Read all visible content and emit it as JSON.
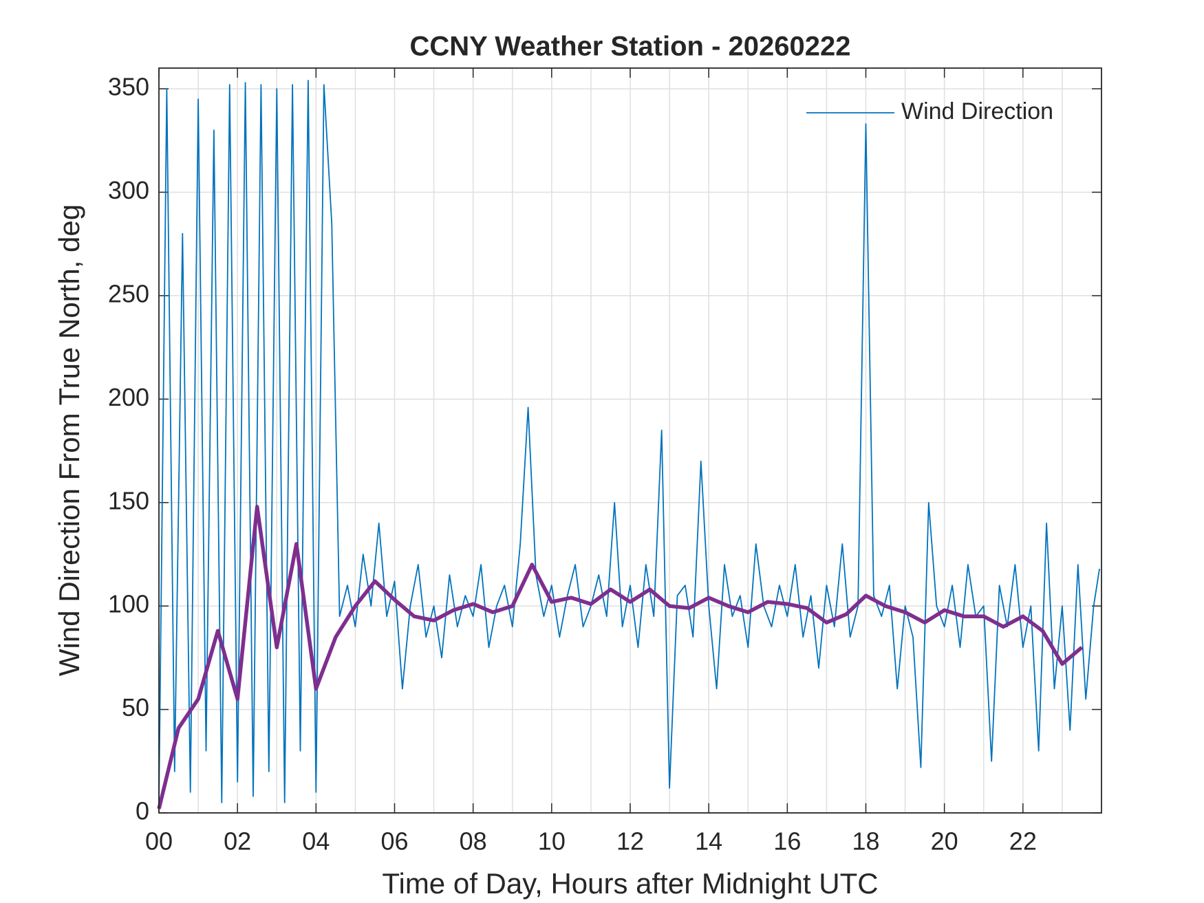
{
  "chart_data": {
    "type": "line",
    "title": "CCNY Weather Station - 20260222",
    "xlabel": "Time of Day, Hours after Midnight UTC",
    "ylabel": "Wind Direction From True North, deg",
    "xlim": [
      0,
      24
    ],
    "ylim": [
      0,
      360
    ],
    "xticks": [
      {
        "value": 0,
        "label": "00"
      },
      {
        "value": 2,
        "label": "02"
      },
      {
        "value": 4,
        "label": "04"
      },
      {
        "value": 6,
        "label": "06"
      },
      {
        "value": 8,
        "label": "08"
      },
      {
        "value": 10,
        "label": "10"
      },
      {
        "value": 12,
        "label": "12"
      },
      {
        "value": 14,
        "label": "14"
      },
      {
        "value": 16,
        "label": "16"
      },
      {
        "value": 18,
        "label": "18"
      },
      {
        "value": 20,
        "label": "20"
      },
      {
        "value": 22,
        "label": "22"
      }
    ],
    "xminorticks": [
      1,
      3,
      5,
      7,
      9,
      11,
      13,
      15,
      17,
      19,
      21,
      23
    ],
    "yticks": [
      0,
      50,
      100,
      150,
      200,
      250,
      300,
      350
    ],
    "grid": true,
    "legend": "upper right",
    "series": [
      {
        "name": "Wind Direction",
        "color": "#0072BD",
        "x": [
          0,
          0.2,
          0.4,
          0.6,
          0.8,
          1,
          1.2,
          1.4,
          1.6,
          1.8,
          2,
          2.2,
          2.4,
          2.6,
          2.8,
          3,
          3.2,
          3.4,
          3.6,
          3.8,
          4,
          4.2,
          4.4,
          4.6,
          4.8,
          5,
          5.2,
          5.4,
          5.6,
          5.8,
          6,
          6.2,
          6.4,
          6.6,
          6.8,
          7,
          7.2,
          7.4,
          7.6,
          7.8,
          8,
          8.2,
          8.4,
          8.6,
          8.8,
          9,
          9.2,
          9.4,
          9.6,
          9.8,
          10,
          10.2,
          10.4,
          10.6,
          10.8,
          11,
          11.2,
          11.4,
          11.6,
          11.8,
          12,
          12.2,
          12.4,
          12.6,
          12.8,
          13,
          13.2,
          13.4,
          13.6,
          13.8,
          14,
          14.2,
          14.4,
          14.6,
          14.8,
          15,
          15.2,
          15.4,
          15.6,
          15.8,
          16,
          16.2,
          16.4,
          16.6,
          16.8,
          17,
          17.2,
          17.4,
          17.6,
          17.8,
          18,
          18.2,
          18.4,
          18.6,
          18.8,
          19,
          19.2,
          19.4,
          19.6,
          19.8,
          20,
          20.2,
          20.4,
          20.6,
          20.8,
          21,
          21.2,
          21.4,
          21.6,
          21.8,
          22,
          22.2,
          22.4,
          22.6,
          22.8,
          23,
          23.2,
          23.4,
          23.6,
          23.8,
          23.95
        ],
        "values": [
          5,
          350,
          20,
          280,
          10,
          345,
          30,
          330,
          5,
          352,
          15,
          353,
          8,
          352,
          20,
          350,
          5,
          352,
          30,
          354,
          10,
          352,
          285,
          95,
          110,
          90,
          125,
          100,
          140,
          95,
          112,
          60,
          100,
          120,
          85,
          100,
          75,
          115,
          90,
          105,
          95,
          120,
          80,
          100,
          110,
          90,
          130,
          196,
          115,
          95,
          110,
          85,
          105,
          120,
          90,
          100,
          115,
          95,
          150,
          90,
          110,
          80,
          120,
          95,
          185,
          12,
          105,
          110,
          85,
          170,
          100,
          60,
          120,
          95,
          105,
          80,
          130,
          100,
          90,
          110,
          95,
          120,
          85,
          105,
          70,
          110,
          90,
          130,
          85,
          100,
          333,
          105,
          95,
          110,
          60,
          100,
          85,
          22,
          150,
          100,
          90,
          110,
          80,
          120,
          95,
          100,
          25,
          110,
          90,
          120,
          80,
          100,
          30,
          140,
          60,
          100,
          40,
          120,
          55,
          100,
          118
        ]
      },
      {
        "color": "#7E2F8E",
        "x": [
          0,
          0.5,
          1,
          1.5,
          2,
          2.5,
          3,
          3.5,
          4,
          4.5,
          5,
          5.5,
          6,
          6.5,
          7,
          7.5,
          8,
          8.5,
          9,
          9.5,
          10,
          10.5,
          11,
          11.5,
          12,
          12.5,
          13,
          13.5,
          14,
          14.5,
          15,
          15.5,
          16,
          16.5,
          17,
          17.5,
          18,
          18.5,
          19,
          19.5,
          20,
          20.5,
          21,
          21.5,
          22,
          22.5,
          23,
          23.5
        ],
        "values": [
          2,
          41,
          55,
          88,
          55,
          148,
          80,
          130,
          60,
          85,
          100,
          112,
          103,
          95,
          93,
          98,
          101,
          97,
          100,
          120,
          102,
          104,
          101,
          108,
          102,
          108,
          100,
          99,
          104,
          100,
          97,
          102,
          101,
          99,
          92,
          96,
          105,
          100,
          97,
          92,
          98,
          95,
          95,
          90,
          95,
          88,
          72,
          80
        ]
      }
    ]
  }
}
